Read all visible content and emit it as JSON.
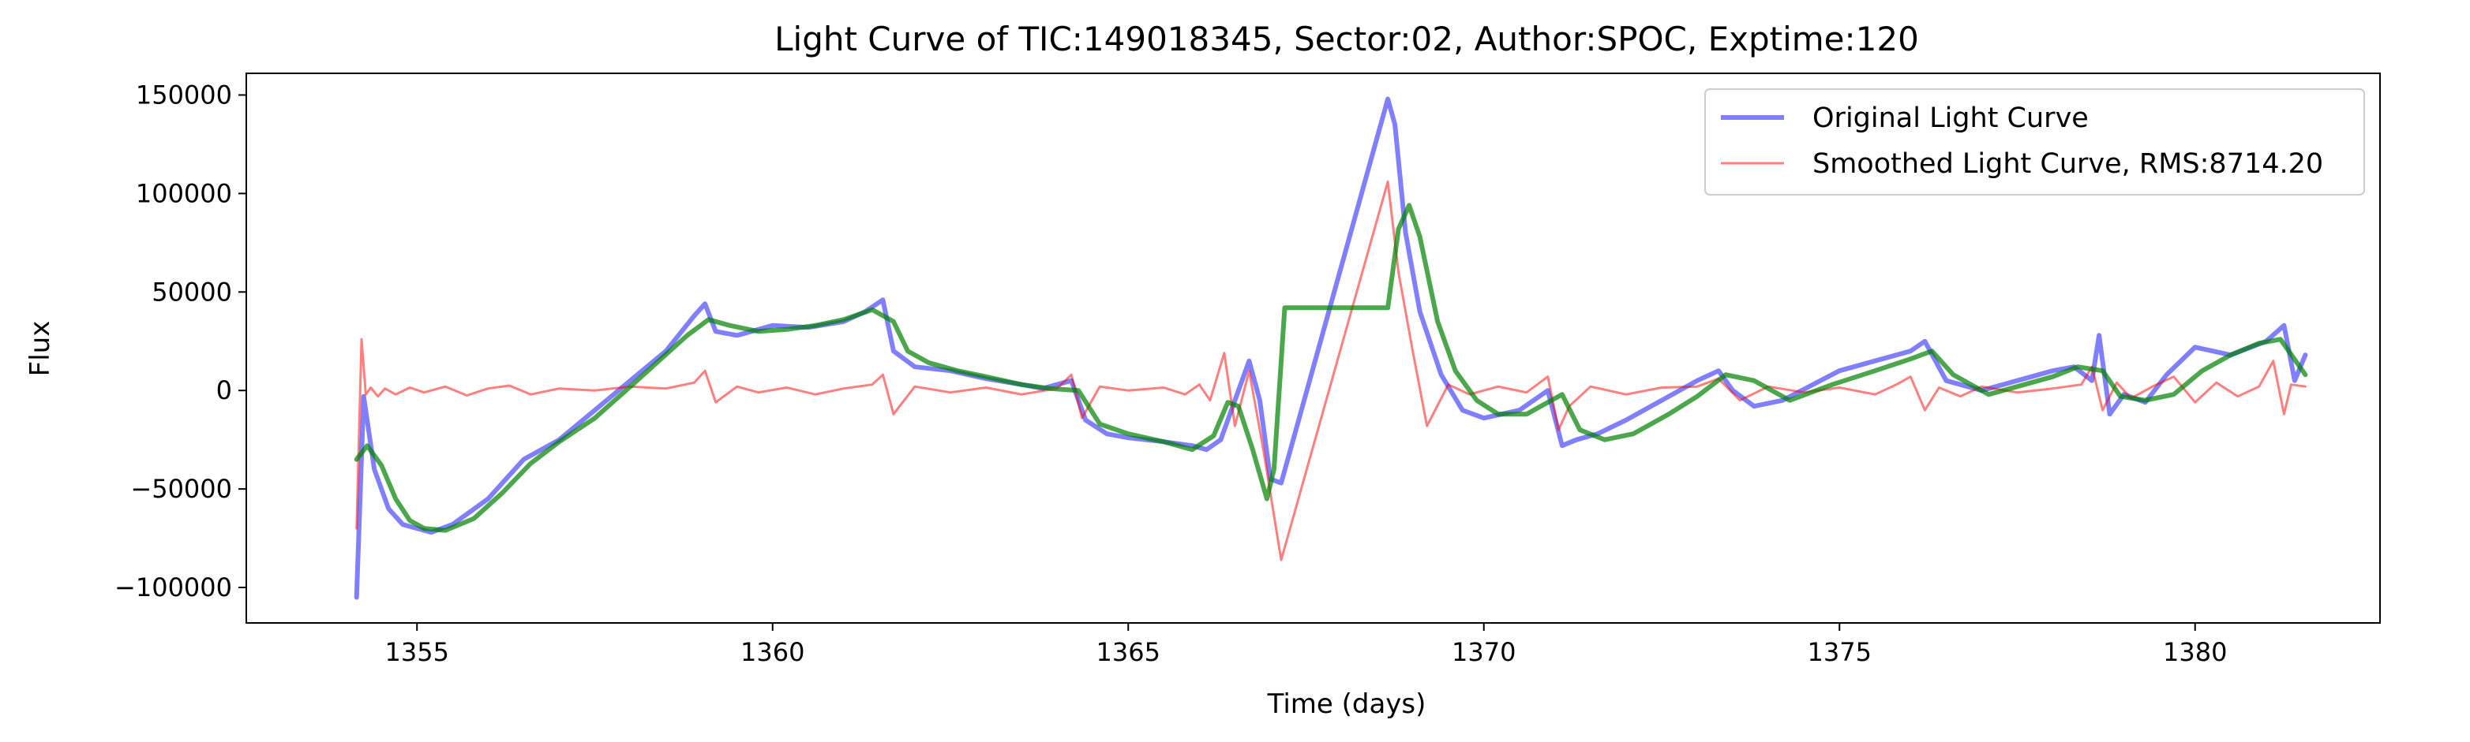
{
  "chart_data": {
    "type": "line",
    "title": "Light Curve of TIC:149018345, Sector:02, Author:SPOC, Exptime:120",
    "xlabel": "Time (days)",
    "ylabel": "Flux",
    "xlim": [
      1352.6,
      1382.6
    ],
    "ylim": [
      -118000,
      161000
    ],
    "xticks": [
      1355,
      1360,
      1365,
      1370,
      1375,
      1380
    ],
    "xtick_labels": [
      "1355",
      "1360",
      "1365",
      "1370",
      "1375",
      "1380"
    ],
    "yticks": [
      -100000,
      -50000,
      0,
      50000,
      100000,
      150000
    ],
    "ytick_labels": [
      "−100000",
      "−50000",
      "0",
      "50000",
      "100000",
      "150000"
    ],
    "grid": false,
    "legend_position": "top-right",
    "series": [
      {
        "name": "Original Light Curve",
        "color": "#0000ff",
        "opacity": 0.5,
        "style": "thick",
        "x": [
          1354.15,
          1354.25,
          1354.4,
          1354.6,
          1354.8,
          1355.0,
          1355.2,
          1355.5,
          1356.0,
          1356.5,
          1357.0,
          1357.5,
          1358.0,
          1358.5,
          1358.9,
          1359.05,
          1359.2,
          1359.5,
          1360.0,
          1360.5,
          1361.0,
          1361.3,
          1361.55,
          1361.7,
          1362.0,
          1362.5,
          1363.0,
          1363.5,
          1363.8,
          1364.2,
          1364.4,
          1364.7,
          1365.0,
          1365.5,
          1365.9,
          1366.1,
          1366.3,
          1366.5,
          1366.7,
          1366.85,
          1367.0,
          1367.15,
          1368.65,
          1368.75,
          1368.9,
          1369.1,
          1369.4,
          1369.7,
          1370.0,
          1370.5,
          1370.9,
          1371.1,
          1371.3,
          1371.6,
          1372.0,
          1372.5,
          1373.0,
          1373.3,
          1373.5,
          1373.8,
          1374.2,
          1375.0,
          1375.5,
          1376.0,
          1376.2,
          1376.5,
          1377.0,
          1377.5,
          1378.0,
          1378.3,
          1378.55,
          1378.65,
          1378.8,
          1379.0,
          1379.3,
          1379.6,
          1380.0,
          1380.5,
          1381.0,
          1381.25,
          1381.4,
          1381.55
        ],
        "y": [
          -105000,
          -3000,
          -40000,
          -60000,
          -68000,
          -70000,
          -72000,
          -68000,
          -55000,
          -35000,
          -25000,
          -10000,
          5000,
          20000,
          38000,
          44000,
          30000,
          28000,
          33000,
          32000,
          35000,
          40000,
          46000,
          20000,
          12000,
          10000,
          6000,
          3000,
          1000,
          5000,
          -15000,
          -22000,
          -24000,
          -26000,
          -28000,
          -30000,
          -25000,
          -5000,
          15000,
          -5000,
          -45000,
          -47000,
          148000,
          135000,
          80000,
          40000,
          8000,
          -10000,
          -14000,
          -10000,
          0,
          -28000,
          -25000,
          -22000,
          -15000,
          -5000,
          5000,
          10000,
          0,
          -8000,
          -5000,
          10000,
          15000,
          20000,
          25000,
          5000,
          0,
          5000,
          10000,
          12000,
          5000,
          28000,
          -12000,
          -2000,
          -6000,
          8000,
          22000,
          18000,
          25000,
          33000,
          5000,
          18000
        ]
      },
      {
        "name": "Smoothed Light Curve, RMS:8714.20",
        "color": "#ff0000",
        "opacity": 0.5,
        "style": "thin",
        "x": [
          1354.15,
          1354.22,
          1354.28,
          1354.35,
          1354.45,
          1354.55,
          1354.7,
          1354.9,
          1355.1,
          1355.4,
          1355.7,
          1356.0,
          1356.3,
          1356.6,
          1357.0,
          1357.5,
          1358.0,
          1358.5,
          1358.9,
          1359.05,
          1359.2,
          1359.5,
          1359.8,
          1360.2,
          1360.6,
          1361.0,
          1361.4,
          1361.55,
          1361.7,
          1362.0,
          1362.5,
          1363.0,
          1363.5,
          1364.0,
          1364.2,
          1364.35,
          1364.6,
          1365.0,
          1365.5,
          1365.8,
          1366.0,
          1366.15,
          1366.35,
          1366.5,
          1366.7,
          1366.9,
          1367.15,
          1368.65,
          1368.8,
          1369.0,
          1369.2,
          1369.5,
          1369.8,
          1370.2,
          1370.6,
          1370.9,
          1371.05,
          1371.2,
          1371.5,
          1372.0,
          1372.5,
          1373.0,
          1373.3,
          1373.6,
          1374.0,
          1374.5,
          1375.0,
          1375.5,
          1375.8,
          1376.0,
          1376.2,
          1376.4,
          1376.7,
          1377.0,
          1377.5,
          1378.0,
          1378.4,
          1378.55,
          1378.7,
          1378.9,
          1379.1,
          1379.4,
          1379.7,
          1380.0,
          1380.3,
          1380.6,
          1380.9,
          1381.1,
          1381.25,
          1381.35,
          1381.55
        ],
        "y": [
          -70000,
          26000,
          -2000,
          1500,
          -3000,
          1000,
          -2000,
          1500,
          -1000,
          2000,
          -2500,
          1000,
          2500,
          -2000,
          1000,
          0,
          2000,
          1000,
          4000,
          10000,
          -6000,
          2000,
          -1000,
          1500,
          -2000,
          1000,
          3000,
          8000,
          -12000,
          2000,
          -1000,
          1500,
          -2000,
          1000,
          8000,
          -14000,
          2000,
          0,
          1500,
          -2000,
          3000,
          -5000,
          19000,
          -18000,
          10000,
          -30000,
          -86000,
          106000,
          60000,
          20000,
          -18000,
          3000,
          -2000,
          2000,
          -1000,
          7000,
          -20000,
          -8000,
          2000,
          -2000,
          1500,
          2000,
          6000,
          -5000,
          2000,
          -1000,
          1500,
          -2000,
          3000,
          7000,
          -10000,
          1500,
          -3000,
          2000,
          -1000,
          1000,
          3000,
          12000,
          -10000,
          4000,
          -4000,
          2000,
          7000,
          -6000,
          4000,
          -3000,
          2000,
          15000,
          -12000,
          3000,
          2000
        ]
      },
      {
        "name": "",
        "color": "#008000",
        "opacity": 0.7,
        "style": "thick",
        "x": [
          1354.15,
          1354.3,
          1354.5,
          1354.7,
          1354.9,
          1355.1,
          1355.4,
          1355.8,
          1356.2,
          1356.6,
          1357.0,
          1357.5,
          1358.0,
          1358.4,
          1358.8,
          1359.1,
          1359.4,
          1359.8,
          1360.2,
          1360.6,
          1361.0,
          1361.4,
          1361.7,
          1361.9,
          1362.2,
          1362.6,
          1363.0,
          1363.5,
          1363.9,
          1364.3,
          1364.6,
          1365.0,
          1365.5,
          1365.9,
          1366.2,
          1366.4,
          1366.55,
          1366.75,
          1366.95,
          1367.05,
          1367.2,
          1368.65,
          1368.8,
          1368.95,
          1369.1,
          1369.35,
          1369.6,
          1369.9,
          1370.2,
          1370.6,
          1370.9,
          1371.1,
          1371.35,
          1371.7,
          1372.1,
          1372.6,
          1373.0,
          1373.4,
          1373.8,
          1374.3,
          1374.9,
          1375.5,
          1376.0,
          1376.3,
          1376.6,
          1377.1,
          1377.6,
          1378.0,
          1378.35,
          1378.7,
          1378.95,
          1379.3,
          1379.7,
          1380.1,
          1380.5,
          1380.9,
          1381.2,
          1381.55
        ],
        "y": [
          -35000,
          -28000,
          -38000,
          -55000,
          -66000,
          -70000,
          -71000,
          -65000,
          -52000,
          -37000,
          -26000,
          -14000,
          2000,
          15000,
          28000,
          36000,
          33000,
          30000,
          31000,
          33000,
          36000,
          41000,
          35000,
          20000,
          14000,
          10000,
          7000,
          3000,
          1000,
          0,
          -17000,
          -22000,
          -26000,
          -30000,
          -23000,
          -6000,
          -8000,
          -30000,
          -55000,
          -40000,
          42000,
          42000,
          82000,
          94000,
          78000,
          35000,
          10000,
          -5000,
          -12000,
          -12000,
          -6000,
          -2000,
          -20000,
          -25000,
          -22000,
          -12000,
          -3000,
          8000,
          5000,
          -5000,
          3000,
          10000,
          16000,
          20000,
          8000,
          -2000,
          3000,
          7000,
          12000,
          10000,
          -3000,
          -5000,
          -2000,
          10000,
          18000,
          24000,
          26000,
          8000
        ]
      }
    ]
  }
}
